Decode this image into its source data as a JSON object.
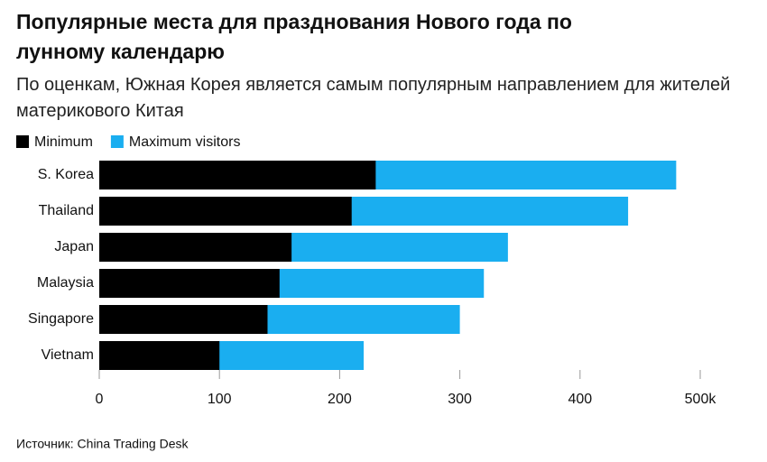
{
  "chart_data": {
    "type": "bar",
    "title": "Популярные места для празднования Нового года по лунному календарю",
    "subtitle": "По оценкам, Южная Корея является самым популярным направлением для жителей материкового Китая",
    "source": "Источник: China Trading Desk",
    "categories": [
      "S. Korea",
      "Thailand",
      "Japan",
      "Malaysia",
      "Singapore",
      "Vietnam"
    ],
    "series": [
      {
        "name": "Minimum",
        "color": "#000000",
        "values": [
          230,
          210,
          160,
          150,
          140,
          100
        ]
      },
      {
        "name": "Maximum visitors",
        "color": "#1aaef0",
        "values": [
          480,
          440,
          340,
          320,
          300,
          220
        ]
      }
    ],
    "xlim": [
      0,
      500
    ],
    "xticks": [
      0,
      100,
      200,
      300,
      400,
      {
        "value": 500,
        "label": "500k"
      }
    ]
  }
}
